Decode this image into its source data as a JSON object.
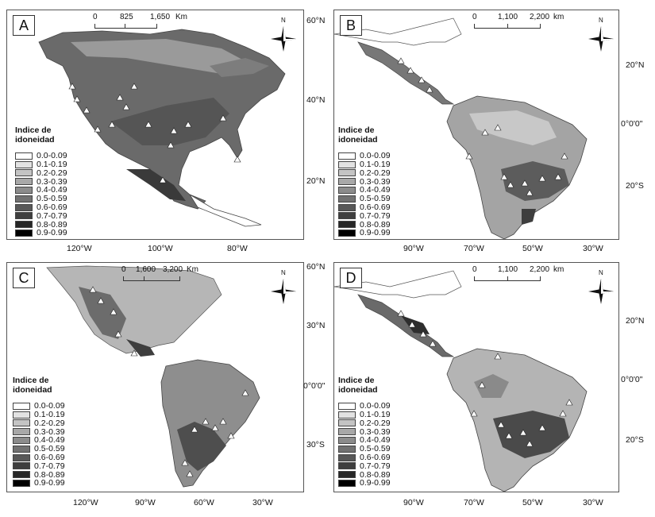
{
  "legend_title": "Indice de idoneidad",
  "legend_classes": [
    "0.0-0.09",
    "0.1-0.19",
    "0.2-0.29",
    "0.3-0.39",
    "0.4-0.49",
    "0.5-0.59",
    "0.6-0.69",
    "0.7-0.79",
    "0.8-0.89",
    "0.9-0.99"
  ],
  "legend_colors": [
    "#ffffff",
    "#e2e2e2",
    "#c4c4c4",
    "#a8a8a8",
    "#8c8c8c",
    "#727272",
    "#585858",
    "#3e3e3e",
    "#262626",
    "#000000"
  ],
  "north_label": "N",
  "panels": {
    "A": {
      "letter": "A",
      "scale": {
        "ticks": [
          "0",
          "825",
          "1,650"
        ],
        "unit": "Km"
      },
      "lat": [
        "60°N",
        "40°N",
        "20°N"
      ],
      "lon": [
        "120°W",
        "100°W",
        "80°W"
      ]
    },
    "B": {
      "letter": "B",
      "scale": {
        "ticks": [
          "0",
          "1,100",
          "2,200"
        ],
        "unit": "km"
      },
      "lat": [
        "20°N",
        "0°0'0\"",
        "20°S"
      ],
      "lon": [
        "90°W",
        "70°W",
        "50°W",
        "30°W"
      ]
    },
    "C": {
      "letter": "C",
      "scale": {
        "ticks": [
          "0",
          "1,600",
          "3,200"
        ],
        "unit": "Km"
      },
      "lat": [
        "60°N",
        "30°N",
        "0°0'0\"",
        "30°S"
      ],
      "lon": [
        "120°W",
        "90°W",
        "60°W",
        "30°W"
      ]
    },
    "D": {
      "letter": "D",
      "scale": {
        "ticks": [
          "0",
          "1,100",
          "2,200"
        ],
        "unit": "km"
      },
      "lat": [
        "20°N",
        "0°0'0\"",
        "20°S"
      ],
      "lon": [
        "90°W",
        "70°W",
        "50°W",
        "30°W"
      ]
    }
  }
}
